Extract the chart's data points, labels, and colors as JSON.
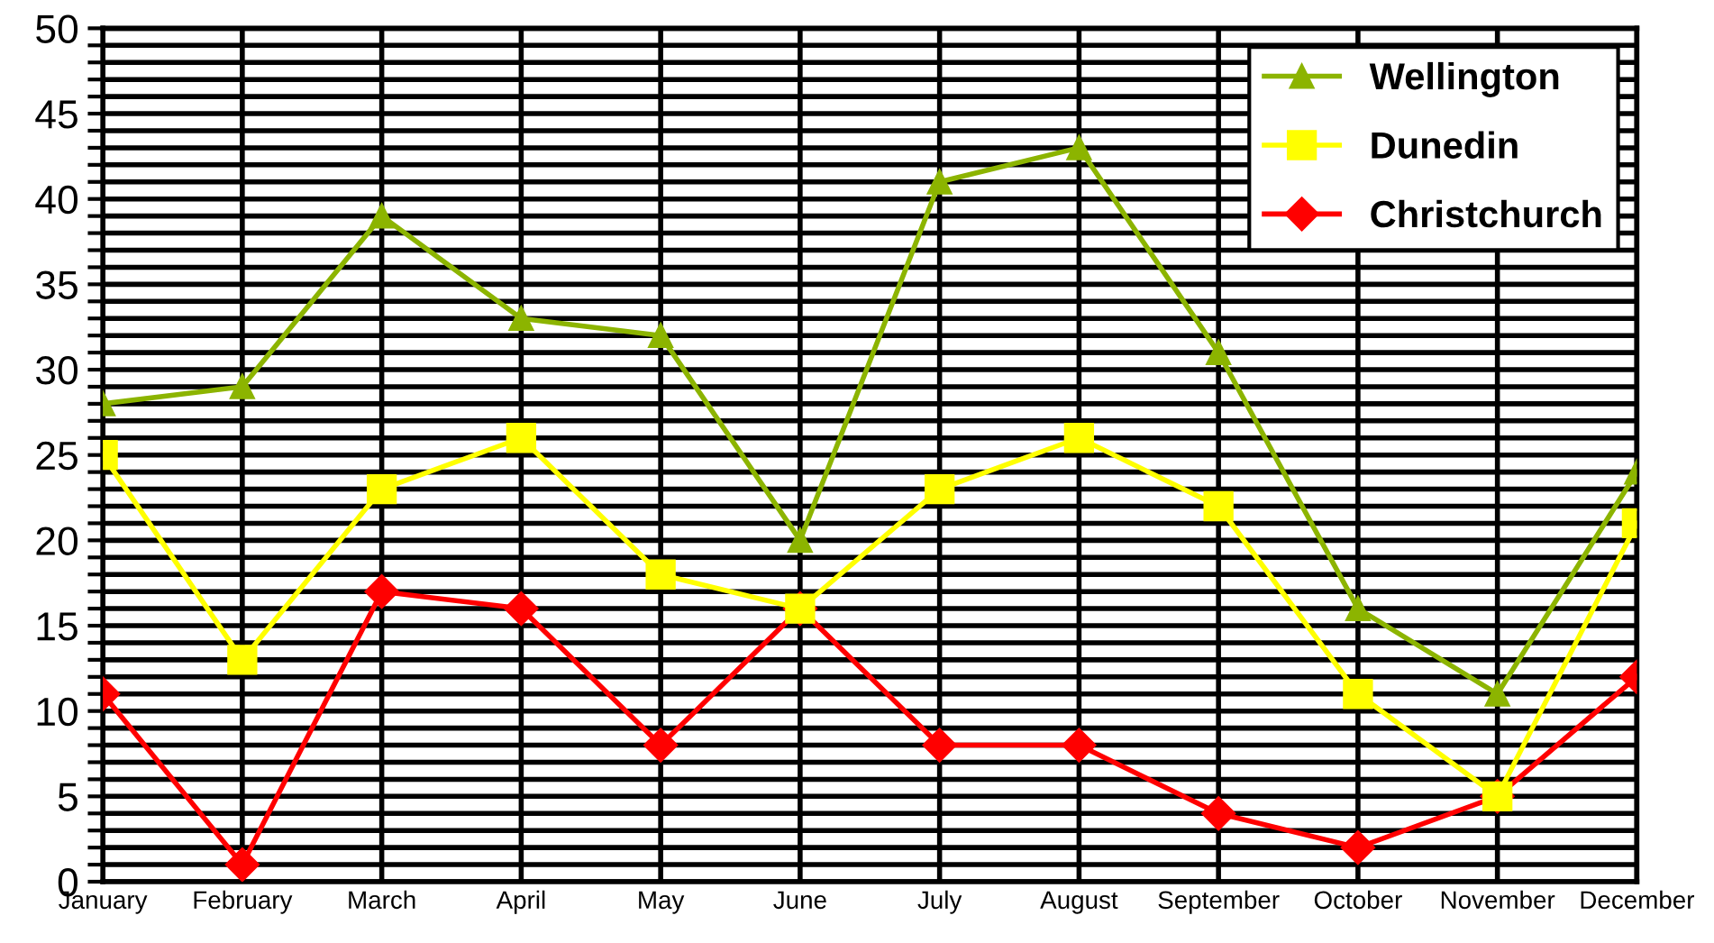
{
  "chart_data": {
    "type": "line",
    "categories": [
      "January",
      "February",
      "March",
      "April",
      "May",
      "June",
      "July",
      "August",
      "September",
      "October",
      "November",
      "December"
    ],
    "series": [
      {
        "name": "Wellington",
        "color": "#8cb400",
        "marker": "triangle",
        "values": [
          28,
          29,
          39,
          33,
          32,
          20,
          41,
          43,
          31,
          16,
          11,
          24
        ]
      },
      {
        "name": "Dunedin",
        "color": "#ffff00",
        "marker": "square",
        "values": [
          25,
          13,
          23,
          26,
          18,
          16,
          23,
          26,
          22,
          11,
          5,
          21
        ]
      },
      {
        "name": "Christchurch",
        "color": "#ff0000",
        "marker": "diamond",
        "values": [
          11,
          1,
          17,
          16,
          8,
          16,
          8,
          8,
          4,
          2,
          5,
          12
        ]
      }
    ],
    "ylim": [
      0,
      50
    ],
    "yticks": [
      0,
      {
        "value": 1,
        "label": null
      },
      {
        "value": 2,
        "label": null
      },
      {
        "value": 3,
        "label": null
      },
      {
        "value": 4,
        "label": null
      },
      5,
      {
        "value": 6,
        "label": null
      },
      {
        "value": 7,
        "label": null
      },
      {
        "value": 8,
        "label": null
      },
      {
        "value": 9,
        "label": null
      },
      10,
      {
        "value": 11,
        "label": null
      },
      {
        "value": 12,
        "label": null
      },
      {
        "value": 13,
        "label": null
      },
      {
        "value": 14,
        "label": null
      },
      15,
      {
        "value": 16,
        "label": null
      },
      {
        "value": 17,
        "label": null
      },
      {
        "value": 18,
        "label": null
      },
      {
        "value": 19,
        "label": null
      },
      20,
      {
        "value": 21,
        "label": null
      },
      {
        "value": 22,
        "label": null
      },
      {
        "value": 23,
        "label": null
      },
      {
        "value": 24,
        "label": null
      },
      25,
      {
        "value": 26,
        "label": null
      },
      {
        "value": 27,
        "label": null
      },
      {
        "value": 28,
        "label": null
      },
      {
        "value": 29,
        "label": null
      },
      30,
      {
        "value": 31,
        "label": null
      },
      {
        "value": 32,
        "label": null
      },
      {
        "value": 33,
        "label": null
      },
      {
        "value": 34,
        "label": null
      },
      35,
      {
        "value": 36,
        "label": null
      },
      {
        "value": 37,
        "label": null
      },
      {
        "value": 38,
        "label": null
      },
      {
        "value": 39,
        "label": null
      },
      40,
      {
        "value": 41,
        "label": null
      },
      {
        "value": 42,
        "label": null
      },
      {
        "value": 43,
        "label": null
      },
      {
        "value": 44,
        "label": null
      },
      45,
      {
        "value": 46,
        "label": null
      },
      {
        "value": 47,
        "label": null
      },
      {
        "value": 48,
        "label": null
      },
      {
        "value": 49,
        "label": null
      },
      50
    ],
    "grid": true,
    "legend": "top right",
    "line_style": "solid"
  }
}
